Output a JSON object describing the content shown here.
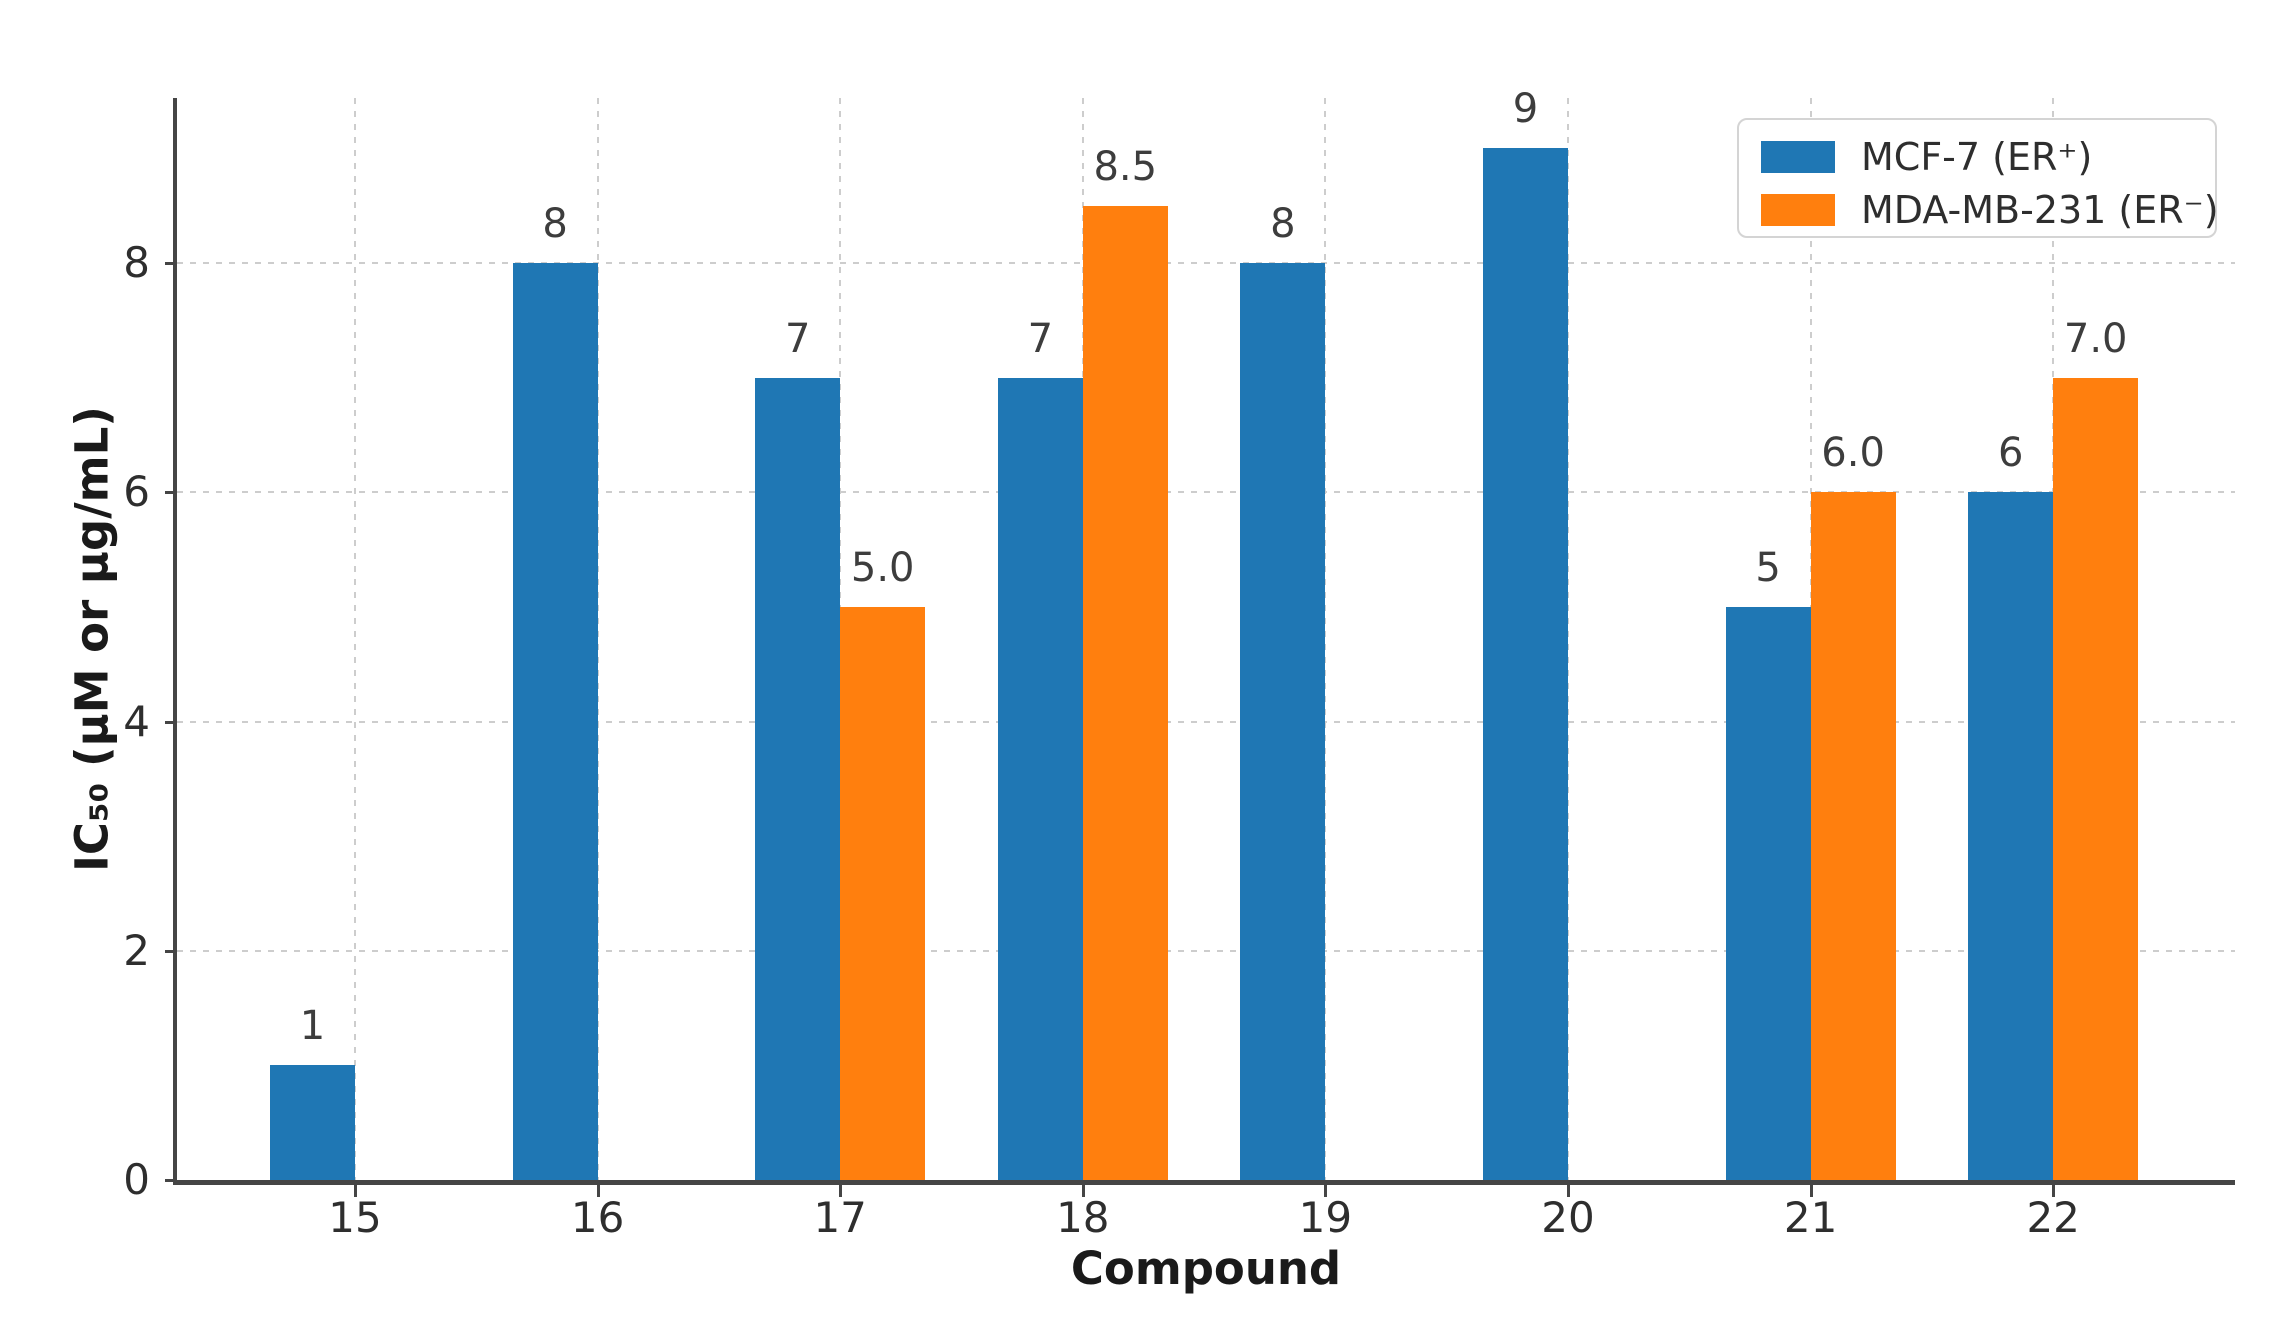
{
  "chart_data": {
    "type": "bar",
    "title": "",
    "xlabel": "Compound",
    "ylabel": "IC₅₀ (μM or μg/mL)",
    "categories": [
      "15",
      "16",
      "17",
      "18",
      "19",
      "20",
      "21",
      "22"
    ],
    "series": [
      {
        "name": "MCF-7 (ER⁺)",
        "key": "mcf7",
        "color": "#1f77b4",
        "values": [
          1,
          8,
          7,
          7,
          8,
          9,
          5,
          6
        ],
        "labels": [
          "1",
          "8",
          "7",
          "7",
          "8",
          "9",
          "5",
          "6"
        ]
      },
      {
        "name": "MDA-MB-231 (ER⁻)",
        "key": "mdamb231",
        "color": "#ff7f0e",
        "values": [
          null,
          null,
          5.0,
          8.5,
          null,
          null,
          6.0,
          7.0
        ],
        "labels": [
          null,
          null,
          "5.0",
          "8.5",
          null,
          null,
          "6.0",
          "7.0"
        ]
      }
    ],
    "ytick_labels": [
      "0",
      "2",
      "4",
      "6",
      "8"
    ],
    "ytick_values": [
      0,
      2,
      4,
      6,
      8
    ],
    "ylim": [
      0,
      9.44
    ],
    "grid": "dashed-both",
    "legend_position": "upper-right",
    "background_color": "#ffffff",
    "grid_color": "#cdcdcd",
    "spine_color": "#454545",
    "value_label_color": "#3d3d3d"
  }
}
